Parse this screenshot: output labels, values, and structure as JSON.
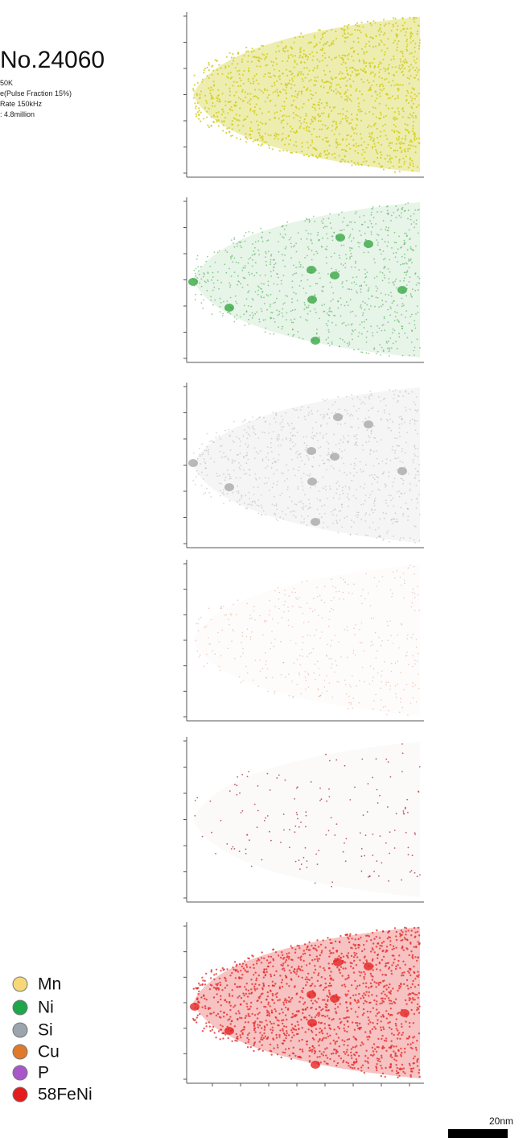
{
  "header": {
    "title": "No.24060",
    "details": [
      "50K",
      "e(Pulse Fraction  15%)",
      "Rate 150kHz",
      ": 4.8million"
    ]
  },
  "legend": [
    "Mn",
    "Ni",
    "Si",
    "Cu",
    "P",
    "58FeNi"
  ],
  "scale_bar": "20nm"
}
